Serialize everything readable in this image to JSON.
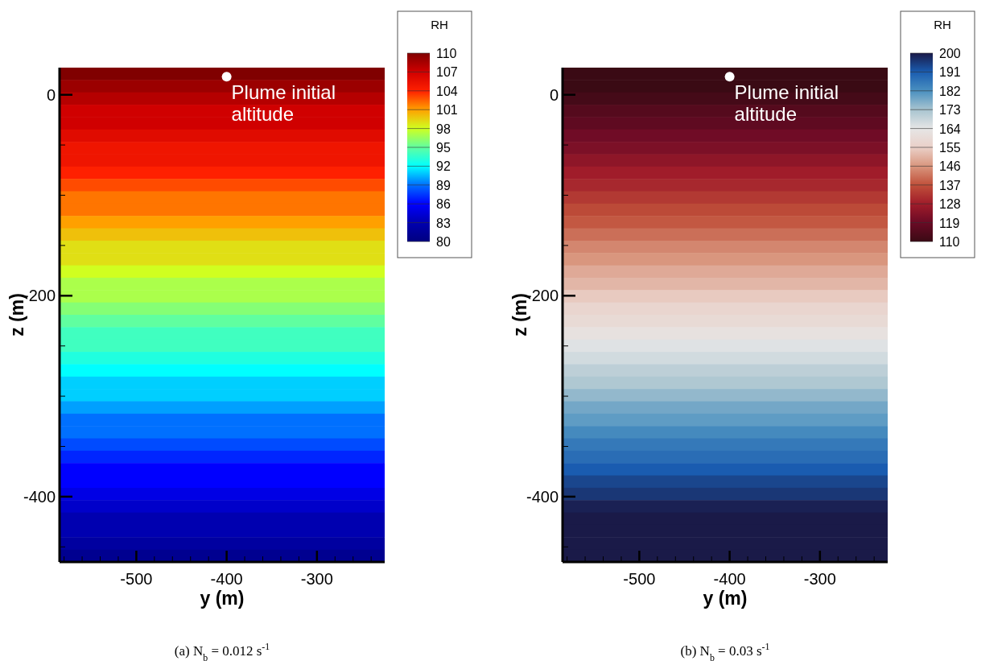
{
  "chart_data": [
    {
      "type": "heatmap",
      "title": "(a) N$_{b}$ = 0.012 s$^{-1}$",
      "xlabel": "y (m)",
      "ylabel": "z (m)",
      "clabel": "RH",
      "xlim": [
        -585,
        -225
      ],
      "ylim": [
        -465,
        27
      ],
      "xticks": [
        {
          "value": -580,
          "label": null
        },
        {
          "value": -560,
          "label": null
        },
        {
          "value": -540,
          "label": null
        },
        {
          "value": -520,
          "label": null
        },
        -500,
        {
          "value": -480,
          "label": null
        },
        {
          "value": -460,
          "label": null
        },
        {
          "value": -440,
          "label": null
        },
        {
          "value": -420,
          "label": null
        },
        -400,
        {
          "value": -380,
          "label": null
        },
        {
          "value": -360,
          "label": null
        },
        {
          "value": -340,
          "label": null
        },
        {
          "value": -320,
          "label": null
        },
        -300,
        {
          "value": -280,
          "label": null
        },
        {
          "value": -260,
          "label": null
        },
        {
          "value": -240,
          "label": null
        }
      ],
      "yticks": [
        0,
        {
          "value": -50,
          "label": null
        },
        {
          "value": -100,
          "label": null
        },
        {
          "value": -150,
          "label": null
        },
        -200,
        {
          "value": -250,
          "label": null
        },
        {
          "value": -300,
          "label": null
        },
        {
          "value": -350,
          "label": null
        },
        -400,
        {
          "value": -450,
          "label": null
        }
      ],
      "clim": [
        80,
        110
      ],
      "cticks": [
        80,
        83,
        86,
        89,
        92,
        95,
        98,
        101,
        104,
        107,
        110
      ],
      "colors": [
        "#000080",
        "#0000b0",
        "#0000ff",
        "#0070ff",
        "#00ffff",
        "#60ffa0",
        "#d0ff20",
        "#ffa000",
        "#ff2000",
        "#d00000",
        "#800000"
      ],
      "cells": [
        [
          110
        ],
        [
          109
        ],
        [
          108
        ],
        [
          107
        ],
        [
          107
        ],
        [
          106
        ],
        [
          105
        ],
        [
          105
        ],
        [
          104
        ],
        [
          103
        ],
        [
          102
        ],
        [
          102
        ],
        [
          101
        ],
        [
          100
        ],
        [
          99
        ],
        [
          99
        ],
        [
          98
        ],
        [
          97
        ],
        [
          97
        ],
        [
          96
        ],
        [
          95
        ],
        [
          94
        ],
        [
          94
        ],
        [
          93
        ],
        [
          92
        ],
        [
          91
        ],
        [
          91
        ],
        [
          90
        ],
        [
          89
        ],
        [
          89
        ],
        [
          88
        ],
        [
          87
        ],
        [
          86
        ],
        [
          86
        ],
        [
          85
        ],
        [
          84
        ],
        [
          83
        ],
        [
          83
        ],
        [
          82
        ],
        [
          81
        ]
      ],
      "annotations": [
        {
          "text": "Plume initial altitude",
          "x": -400,
          "y": 18
        }
      ]
    },
    {
      "type": "heatmap",
      "title": "(b) N$_{b}$ = 0.03 s$^{-1}$",
      "xlabel": "y (m)",
      "ylabel": "z (m)",
      "clabel": "RH",
      "xlim": [
        -585,
        -225
      ],
      "ylim": [
        -465,
        27
      ],
      "xticks": [
        {
          "value": -580,
          "label": null
        },
        {
          "value": -560,
          "label": null
        },
        {
          "value": -540,
          "label": null
        },
        {
          "value": -520,
          "label": null
        },
        -500,
        {
          "value": -480,
          "label": null
        },
        {
          "value": -460,
          "label": null
        },
        {
          "value": -440,
          "label": null
        },
        {
          "value": -420,
          "label": null
        },
        -400,
        {
          "value": -380,
          "label": null
        },
        {
          "value": -360,
          "label": null
        },
        {
          "value": -340,
          "label": null
        },
        {
          "value": -320,
          "label": null
        },
        -300,
        {
          "value": -280,
          "label": null
        },
        {
          "value": -260,
          "label": null
        },
        {
          "value": -240,
          "label": null
        }
      ],
      "yticks": [
        0,
        {
          "value": -50,
          "label": null
        },
        {
          "value": -100,
          "label": null
        },
        {
          "value": -150,
          "label": null
        },
        -200,
        {
          "value": -250,
          "label": null
        },
        {
          "value": -300,
          "label": null
        },
        {
          "value": -350,
          "label": null
        },
        -400,
        {
          "value": -450,
          "label": null
        }
      ],
      "clim": [
        110,
        200
      ],
      "cticks": [
        110,
        119,
        128,
        137,
        146,
        155,
        164,
        173,
        182,
        191,
        200
      ],
      "colors": [
        "#3a0a14",
        "#6a0a25",
        "#a01c2a",
        "#c0503a",
        "#d9967e",
        "#ead0c8",
        "#e6e6e6",
        "#a8c4d0",
        "#4a90c0",
        "#1a5cb0",
        "#1a1a48"
      ],
      "cells": [
        [
          110
        ],
        [
          110
        ],
        [
          112
        ],
        [
          115
        ],
        [
          117
        ],
        [
          120
        ],
        [
          122
        ],
        [
          125
        ],
        [
          128
        ],
        [
          130
        ],
        [
          133
        ],
        [
          136
        ],
        [
          138
        ],
        [
          141
        ],
        [
          144
        ],
        [
          146
        ],
        [
          149
        ],
        [
          151
        ],
        [
          154
        ],
        [
          157
        ],
        [
          159
        ],
        [
          162
        ],
        [
          165
        ],
        [
          167
        ],
        [
          170
        ],
        [
          172
        ],
        [
          175
        ],
        [
          178
        ],
        [
          180
        ],
        [
          183
        ],
        [
          186
        ],
        [
          188
        ],
        [
          191
        ],
        [
          194
        ],
        [
          196
        ],
        [
          199
        ],
        [
          200
        ],
        [
          200
        ],
        [
          200
        ],
        [
          200
        ]
      ],
      "annotations": [
        {
          "text": "Plume initial altitude",
          "x": -400,
          "y": 18
        }
      ]
    }
  ]
}
